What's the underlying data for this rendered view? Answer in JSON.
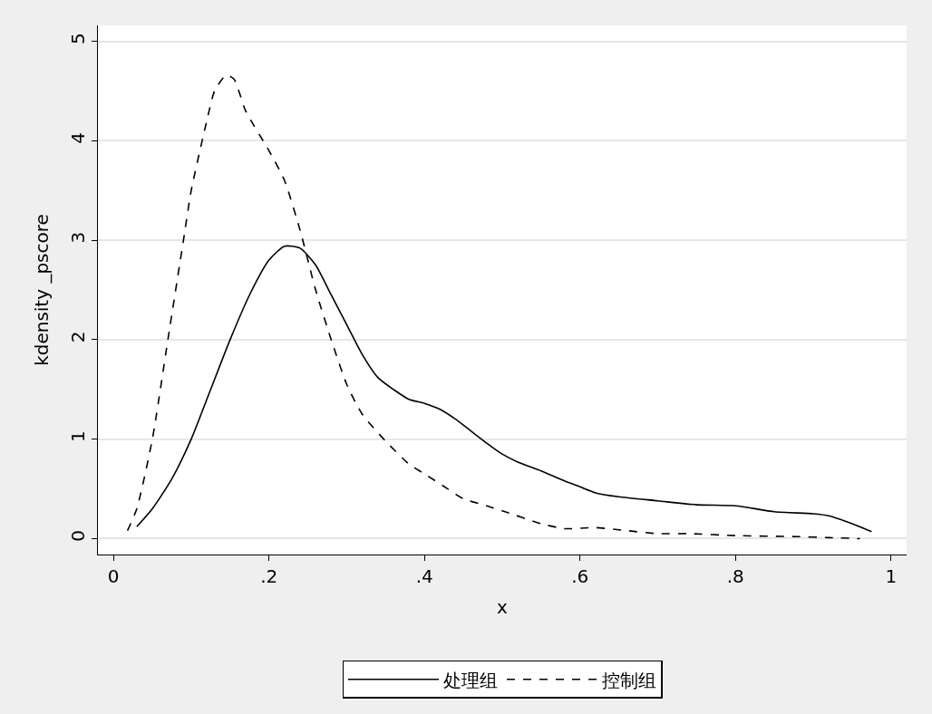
{
  "chart_data": {
    "type": "line",
    "xlabel": "x",
    "ylabel": "kdensity _pscore",
    "xlim": [
      -0.02,
      1.02
    ],
    "ylim": [
      -0.16,
      5.16
    ],
    "xticks": [
      0,
      {
        "value": 0.2,
        "label": ".2"
      },
      {
        "value": 0.4,
        "label": ".4"
      },
      {
        "value": 0.6,
        "label": ".6"
      },
      {
        "value": 0.8,
        "label": ".8"
      },
      1
    ],
    "yticks": [
      0,
      1,
      2,
      3,
      4,
      5
    ],
    "grid": "y",
    "legend": "bottom",
    "series": [
      {
        "name": "处理组",
        "color": "#000000",
        "line_style": "solid",
        "x": [
          0.03,
          0.05,
          0.075,
          0.1,
          0.125,
          0.15,
          0.175,
          0.2,
          0.22,
          0.24,
          0.26,
          0.28,
          0.3,
          0.32,
          0.34,
          0.36,
          0.38,
          0.4,
          0.42,
          0.44,
          0.46,
          0.48,
          0.5,
          0.52,
          0.55,
          0.58,
          0.6,
          0.62,
          0.65,
          0.7,
          0.75,
          0.8,
          0.85,
          0.9,
          0.92,
          0.95,
          0.975
        ],
        "values": [
          0.12,
          0.3,
          0.6,
          1.0,
          1.5,
          2.0,
          2.45,
          2.8,
          2.94,
          2.92,
          2.75,
          2.45,
          2.15,
          1.85,
          1.62,
          1.5,
          1.4,
          1.36,
          1.3,
          1.2,
          1.08,
          0.96,
          0.85,
          0.77,
          0.68,
          0.58,
          0.52,
          0.46,
          0.42,
          0.38,
          0.34,
          0.33,
          0.27,
          0.25,
          0.23,
          0.15,
          0.07
        ]
      },
      {
        "name": "控制组",
        "color": "#000000",
        "line_style": "dashed",
        "x": [
          0.018,
          0.03,
          0.05,
          0.07,
          0.09,
          0.1,
          0.12,
          0.13,
          0.145,
          0.155,
          0.17,
          0.2,
          0.22,
          0.24,
          0.26,
          0.28,
          0.3,
          0.32,
          0.35,
          0.38,
          0.4,
          0.43,
          0.45,
          0.48,
          0.5,
          0.55,
          0.58,
          0.62,
          0.66,
          0.7,
          0.74,
          0.8,
          0.88,
          0.92,
          0.96
        ],
        "values": [
          0.08,
          0.3,
          1.0,
          2.0,
          3.0,
          3.5,
          4.2,
          4.5,
          4.66,
          4.62,
          4.3,
          3.9,
          3.6,
          3.1,
          2.5,
          2.0,
          1.55,
          1.25,
          0.98,
          0.75,
          0.65,
          0.5,
          0.4,
          0.33,
          0.28,
          0.15,
          0.1,
          0.11,
          0.08,
          0.05,
          0.05,
          0.03,
          0.02,
          0.01,
          0.0
        ]
      }
    ]
  }
}
